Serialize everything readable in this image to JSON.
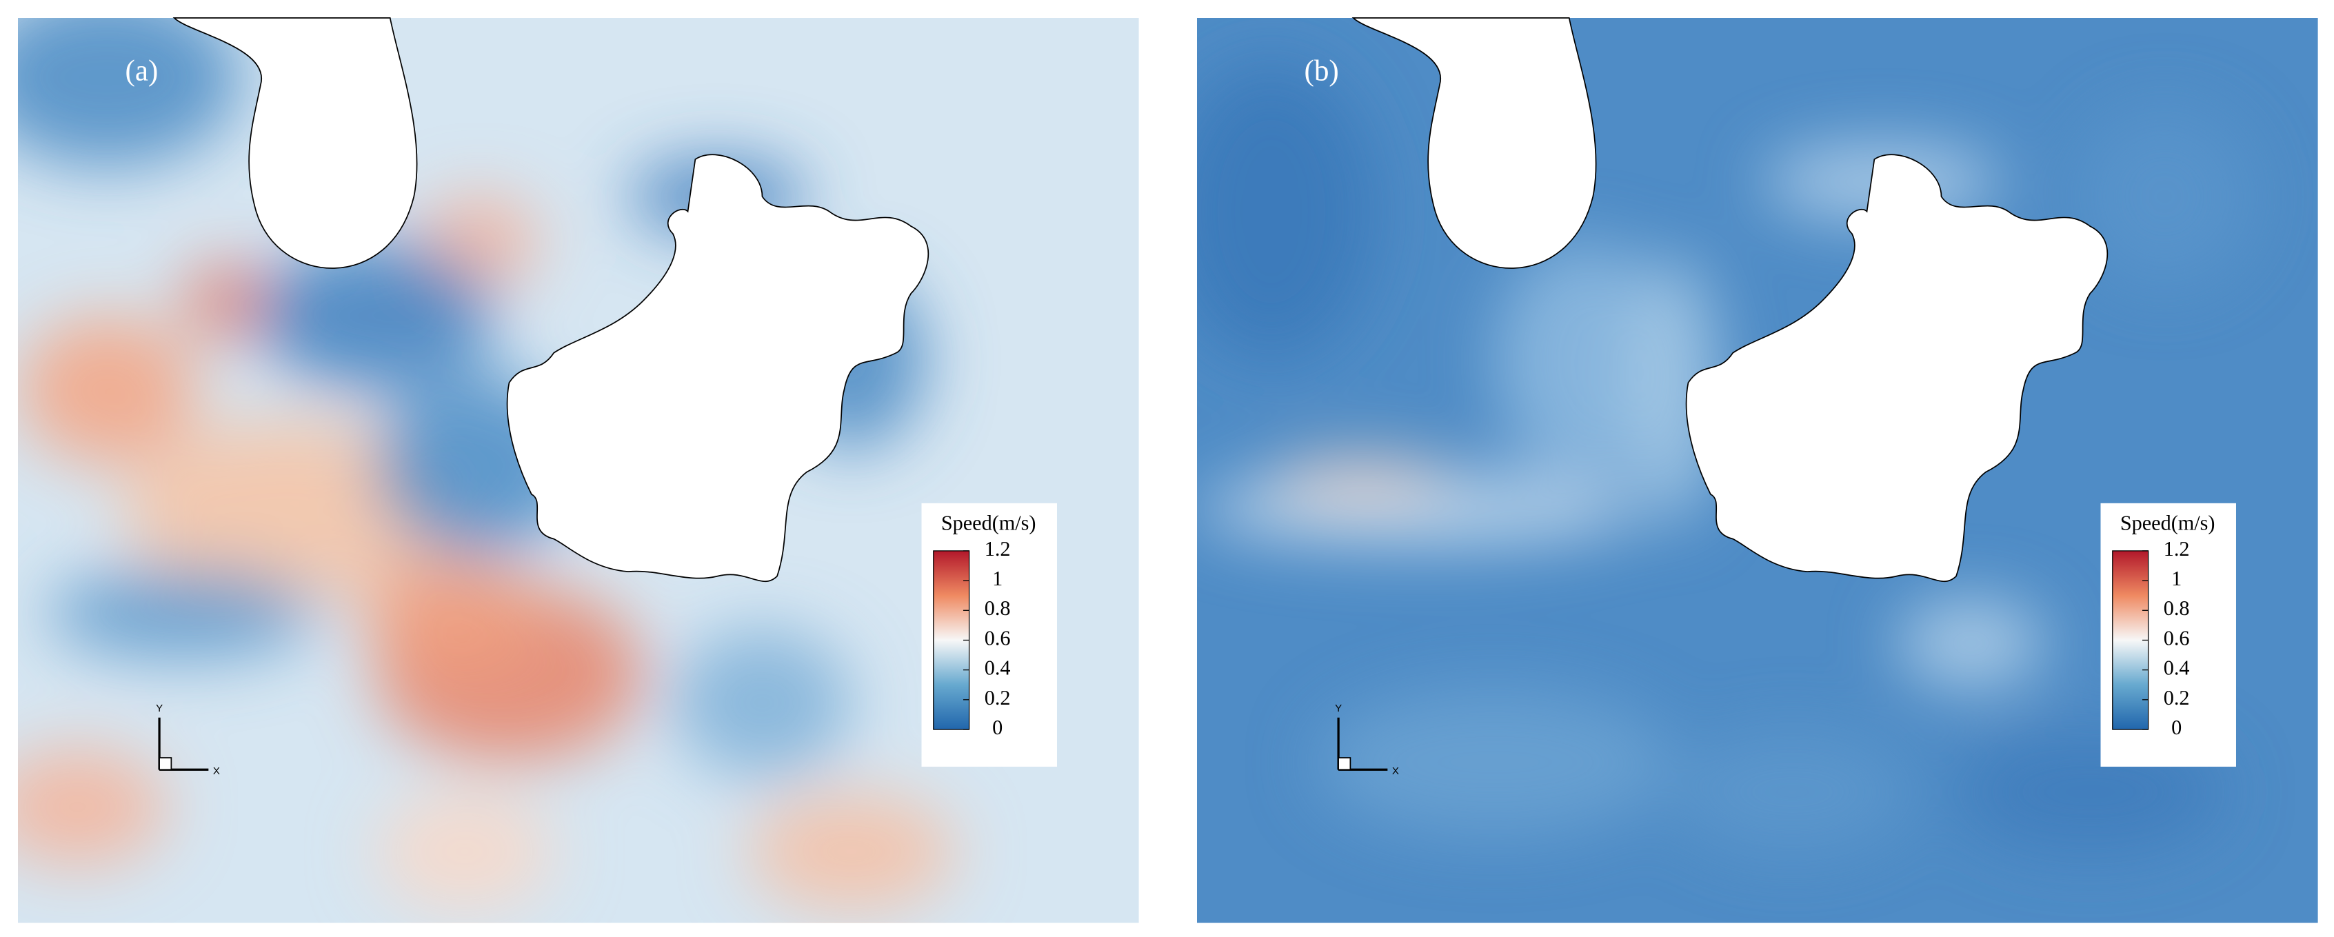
{
  "chart_data": [
    {
      "type": "contour",
      "title": "(a)",
      "colorbar_label": "Speed(m/s)",
      "clim": [
        0,
        1.2
      ],
      "colorbar_ticks": [
        0,
        0.2,
        0.4,
        0.6,
        0.8,
        1,
        1.2
      ],
      "colormap": [
        "#2166ac",
        "#67a9cf",
        "#f7f7f7",
        "#ef8a62",
        "#b2182b"
      ],
      "x_axis_label": "X",
      "y_axis_label": "Y"
    },
    {
      "type": "contour",
      "title": "(b)",
      "colorbar_label": "Speed(m/s)",
      "clim": [
        0,
        1.2
      ],
      "colorbar_ticks": [
        0,
        0.2,
        0.4,
        0.6,
        0.8,
        1,
        1.2
      ],
      "colormap": [
        "#2166ac",
        "#67a9cf",
        "#f7f7f7",
        "#ef8a62",
        "#b2182b"
      ],
      "x_axis_label": "X",
      "y_axis_label": "Y"
    }
  ]
}
